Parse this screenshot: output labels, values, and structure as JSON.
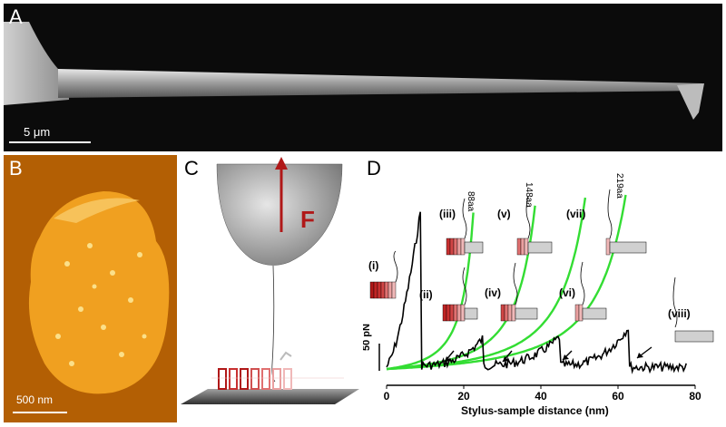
{
  "panels": {
    "A": {
      "label": "A",
      "scalebar": "5 μm"
    },
    "B": {
      "label": "B",
      "scalebar": "500 nm"
    },
    "C": {
      "label": "C",
      "force_label": "F"
    },
    "D": {
      "label": "D",
      "xlabel": "Stylus-sample distance (nm)",
      "ylabel": "50 pN",
      "xticks": [
        "0",
        "20",
        "40",
        "60",
        "80"
      ],
      "steps": [
        "(i)",
        "(ii)",
        "(iii)",
        "(iv)",
        "(v)",
        "(vi)",
        "(vii)",
        "(viii)"
      ],
      "lengths": [
        "88aa",
        "148aa",
        "219aa"
      ]
    }
  },
  "colors": {
    "trace": "#000000",
    "fit": "#33dd33",
    "helix_dark": "#b01818",
    "helix_light": "#f0b0b0"
  },
  "chart_data": {
    "type": "line",
    "title": "",
    "xlabel": "Stylus-sample distance (nm)",
    "ylabel": "50 pN",
    "xlim": [
      0,
      80
    ],
    "xticks": [
      0,
      20,
      40,
      60,
      80
    ],
    "peaks_x": [
      9,
      25,
      45,
      63
    ],
    "series": [
      {
        "values_x": [
          0,
          2,
          4,
          6,
          8,
          9,
          10,
          12,
          15,
          20,
          25,
          26,
          30,
          35,
          40,
          45,
          46,
          50,
          55,
          60,
          63,
          64,
          70,
          78
        ]
      }
    ],
    "annotations": [
      "(i)",
      "(ii)",
      "(iii)",
      "(iv)",
      "(v)",
      "(vi)",
      "(vii)",
      "(viii)",
      "88aa",
      "148aa",
      "219aa"
    ]
  }
}
